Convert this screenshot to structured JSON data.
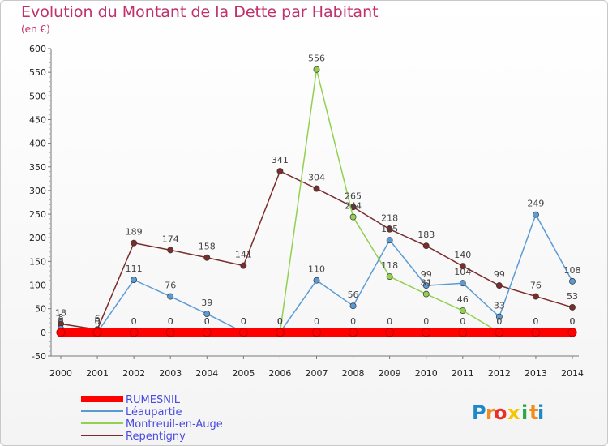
{
  "header": {
    "title": "Evolution du Montant de la Dette par Habitant",
    "unit": "(en €)"
  },
  "chart_data": {
    "type": "line",
    "title": "Evolution du Montant de la Dette par Habitant",
    "ylabel": "(en €)",
    "x": [
      "2000",
      "2001",
      "2002",
      "2003",
      "2004",
      "2005",
      "2006",
      "2007",
      "2008",
      "2009",
      "2010",
      "2011",
      "2012",
      "2013",
      "2014"
    ],
    "ylim": [
      -50,
      600
    ],
    "yticks": [
      -50,
      0,
      50,
      100,
      150,
      200,
      250,
      300,
      350,
      400,
      450,
      500,
      550,
      600
    ],
    "grid": false,
    "legend_position": "bottom-left",
    "series": [
      {
        "name": "RUMESNIL",
        "color": "#ff0000",
        "values": [
          0,
          0,
          0,
          0,
          0,
          0,
          0,
          0,
          0,
          0,
          0,
          0,
          0,
          0,
          0
        ],
        "labels": [
          "0",
          "0",
          "0",
          "0",
          "0",
          "0",
          "0",
          "0",
          "0",
          "0",
          "0",
          "0",
          "0",
          "0",
          "0"
        ]
      },
      {
        "name": "Léaupartie",
        "color": "#5b9bd5",
        "values": [
          8,
          0,
          111,
          76,
          39,
          0,
          0,
          110,
          56,
          195,
          99,
          104,
          33,
          249,
          108
        ],
        "labels": [
          "8",
          "0",
          "111",
          "76",
          "39",
          "0",
          "0",
          "110",
          "56",
          "195",
          "99",
          "104",
          "33",
          "249",
          "108"
        ]
      },
      {
        "name": "Montreuil-en-Auge",
        "color": "#92d050",
        "values": [
          0,
          0,
          0,
          0,
          0,
          0,
          0,
          556,
          244,
          118,
          81,
          46,
          0,
          0,
          0
        ],
        "labels": [
          "0",
          "0",
          "0",
          "0",
          "0",
          "0",
          "0",
          "556",
          "244",
          "118",
          "81",
          "46",
          "0",
          "0",
          "0"
        ]
      },
      {
        "name": "Repentigny",
        "color": "#7b2c2c",
        "values": [
          18,
          6,
          189,
          174,
          158,
          141,
          341,
          304,
          265,
          218,
          183,
          140,
          99,
          76,
          53
        ],
        "labels": [
          "18",
          "6",
          "189",
          "174",
          "158",
          "141",
          "341",
          "304",
          "265",
          "218",
          "183",
          "140",
          "99",
          "76",
          "53"
        ]
      }
    ]
  },
  "brand": {
    "text": "Proxiti",
    "letters": [
      "P",
      "r",
      "o",
      "x",
      "i",
      "t",
      "i"
    ],
    "colors": [
      "#1e88c9",
      "#f28c1c",
      "#e8312b",
      "#f6c500",
      "#2aa84a",
      "#f28c1c",
      "#1e88c9"
    ]
  }
}
